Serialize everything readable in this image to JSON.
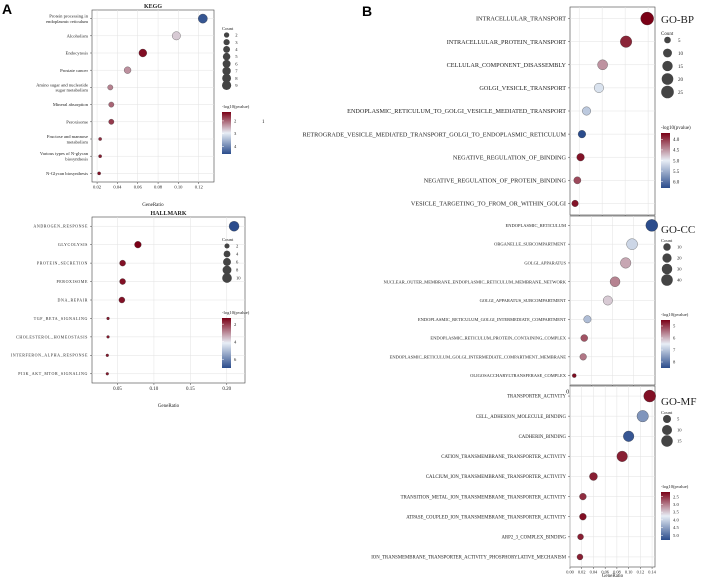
{
  "figure": {
    "panel_a_label": "A",
    "panel_b_label": "B",
    "stray_mark": "1"
  },
  "colors": {
    "low": "#2b4c8c",
    "mid": "#e8eef6",
    "high": "#7a0016",
    "grid": "#e2e2e2",
    "frame": "#444444",
    "point_stroke": "#333333"
  },
  "chart_data": [
    {
      "id": "kegg",
      "type": "scatter",
      "title": "KEGG",
      "xlabel": "GeneRatio",
      "xlim": [
        0.015,
        0.135
      ],
      "xticks": [
        0.02,
        0.04,
        0.06,
        0.08,
        0.1,
        0.12
      ],
      "xtick_labels": [
        "0.02",
        "0.04",
        "0.06",
        "0.08",
        "0.10",
        "0.12"
      ],
      "size_legend": {
        "title": "Count",
        "values": [
          2,
          3,
          4,
          5,
          6,
          7,
          8,
          9
        ],
        "labels": [
          "2",
          "3",
          "4",
          "5",
          "6",
          "7",
          "8",
          "9"
        ],
        "domain": [
          1,
          9
        ]
      },
      "color_legend": {
        "title": "-log10(pvalue)",
        "ticks": [
          2,
          3,
          4
        ],
        "tick_labels": [
          "2",
          "3",
          "4"
        ],
        "domain": [
          1.3,
          4.6
        ]
      },
      "points": [
        {
          "term": "Protein processing in endoplasmic reticulum",
          "ratio": 0.124,
          "count": 9,
          "logp": 4.5
        },
        {
          "term": "Alcoholism",
          "ratio": 0.098,
          "count": 7,
          "logp": 2.7
        },
        {
          "term": "Endocytosis",
          "ratio": 0.065,
          "count": 6,
          "logp": 1.4
        },
        {
          "term": "Prostate cancer",
          "ratio": 0.05,
          "count": 4,
          "logp": 2.3
        },
        {
          "term": "Amino sugar and nucleotide sugar metabolism",
          "ratio": 0.033,
          "count": 2,
          "logp": 2.2
        },
        {
          "term": "Mineral absorption",
          "ratio": 0.034,
          "count": 2,
          "logp": 2.0
        },
        {
          "term": "Peroxisome",
          "ratio": 0.034,
          "count": 2,
          "logp": 1.7
        },
        {
          "term": "Fructose and mannose metabolism",
          "ratio": 0.023,
          "count": 1,
          "logp": 1.6
        },
        {
          "term": "Various types of N-glycan biosynthesis",
          "ratio": 0.023,
          "count": 1,
          "logp": 1.5
        },
        {
          "term": "N-Glycan biosynthesis",
          "ratio": 0.022,
          "count": 1,
          "logp": 1.4
        }
      ]
    },
    {
      "id": "hallmark",
      "type": "scatter",
      "title": "HALLMARK",
      "xlabel": "GeneRatio",
      "xlim": [
        0.015,
        0.225
      ],
      "xticks": [
        0.05,
        0.1,
        0.15,
        0.2
      ],
      "xtick_labels": [
        "0.05",
        "0.10",
        "0.15",
        "0.20"
      ],
      "size_legend": {
        "title": "Count",
        "values": [
          2,
          4,
          6,
          8,
          10
        ],
        "labels": [
          "2",
          "4",
          "6",
          "8",
          "10"
        ],
        "domain": [
          1,
          11
        ]
      },
      "color_legend": {
        "title": "-log10(pvalue)",
        "ticks": [
          2,
          4,
          6
        ],
        "tick_labels": [
          "2",
          "4",
          "6"
        ],
        "domain": [
          1.3,
          7
        ]
      },
      "points": [
        {
          "term": "ANDROGEN_RESPONSE",
          "ratio": 0.21,
          "count": 11,
          "logp": 7.0
        },
        {
          "term": "GLYCOLYSIS",
          "ratio": 0.078,
          "count": 4,
          "logp": 1.3
        },
        {
          "term": "PROTEIN_SECRETION",
          "ratio": 0.057,
          "count": 3,
          "logp": 1.5
        },
        {
          "term": "PEROXISOME",
          "ratio": 0.057,
          "count": 3,
          "logp": 1.5
        },
        {
          "term": "DNA_REPAIR",
          "ratio": 0.056,
          "count": 3,
          "logp": 1.5
        },
        {
          "term": "TGF_BETA_SIGNALING",
          "ratio": 0.037,
          "count": 1,
          "logp": 1.6
        },
        {
          "term": "CHOLESTEROL_HOMEOSTASIS",
          "ratio": 0.037,
          "count": 1,
          "logp": 1.6
        },
        {
          "term": "INTERFERON_ALPHA_RESPONSE",
          "ratio": 0.036,
          "count": 1,
          "logp": 1.6
        },
        {
          "term": "PI3K_AKT_MTOR_SIGNALING",
          "ratio": 0.036,
          "count": 1,
          "logp": 1.6
        }
      ]
    },
    {
      "id": "go-bp",
      "type": "scatter",
      "title": "GO-BP",
      "xlabel": "",
      "xlim": [
        0.03,
        0.215
      ],
      "xticks": [
        0.05,
        0.1,
        0.15,
        0.2
      ],
      "xtick_labels": [
        "0.05",
        "0.10",
        "0.15",
        "0.20"
      ],
      "size_legend": {
        "title": "Count",
        "values": [
          5,
          10,
          15,
          20,
          25
        ],
        "labels": [
          "5",
          "10",
          "15",
          "20",
          "25"
        ],
        "domain": [
          3,
          27
        ]
      },
      "color_legend": {
        "title": "-log10(pvalue)",
        "ticks": [
          4.0,
          4.5,
          5.0,
          5.5,
          6.0
        ],
        "tick_labels": [
          "4.0",
          "4.5",
          "5.0",
          "5.5",
          "6.0"
        ],
        "domain": [
          3.7,
          6.3
        ]
      },
      "points": [
        {
          "term": "INTRACELLULAR_TRANSPORT",
          "ratio": 0.198,
          "count": 27,
          "logp": 3.7
        },
        {
          "term": "INTRACELLULAR_PROTEIN_TRANSPORT",
          "ratio": 0.152,
          "count": 20,
          "logp": 3.9
        },
        {
          "term": "CELLULAR_COMPONENT_DISASSEMBLY",
          "ratio": 0.101,
          "count": 14,
          "logp": 4.5
        },
        {
          "term": "GOLGI_VESICLE_TRANSPORT",
          "ratio": 0.093,
          "count": 12,
          "logp": 5.1
        },
        {
          "term": "ENDOPLASMIC_RETICULUM_TO_GOLGI_VESICLE_MEDIATED_TRANSPORT",
          "ratio": 0.066,
          "count": 9,
          "logp": 5.3
        },
        {
          "term": "RETROGRADE_VESICLE_MEDIATED_TRANSPORT_GOLGI_TO_ENDOPLASMIC_RETICULUM",
          "ratio": 0.056,
          "count": 7,
          "logp": 6.3
        },
        {
          "term": "NEGATIVE_REGULATION_OF_BINDING",
          "ratio": 0.053,
          "count": 7,
          "logp": 3.8
        },
        {
          "term": "NEGATIVE_REGULATION_OF_PROTEIN_BINDING",
          "ratio": 0.046,
          "count": 6,
          "logp": 4.1
        },
        {
          "term": "VESICLE_TARGETING_TO_FROM_OR_WITHIN_GOLGI",
          "ratio": 0.041,
          "count": 5,
          "logp": 3.8
        }
      ]
    },
    {
      "id": "go-cc",
      "type": "scatter",
      "title": "GO-CC",
      "xlabel": "",
      "xlim": [
        0.0,
        0.4
      ],
      "xticks": [
        0.0,
        0.1,
        0.2,
        0.3
      ],
      "xtick_labels": [
        "0.0",
        "0.10",
        "0.20",
        "0.30"
      ],
      "size_legend": {
        "title": "Count",
        "values": [
          10,
          20,
          30,
          40
        ],
        "labels": [
          "10",
          "20",
          "30",
          "40"
        ],
        "domain": [
          2,
          45
        ]
      },
      "color_legend": {
        "title": "-log10(pvalue)",
        "ticks": [
          5,
          6,
          7,
          8
        ],
        "tick_labels": [
          "5",
          "6",
          "7",
          "8"
        ],
        "domain": [
          4.5,
          8.5
        ]
      },
      "points": [
        {
          "term": "ENDOPLASMIC_RETICULUM",
          "ratio": 0.385,
          "count": 45,
          "logp": 8.5
        },
        {
          "term": "ORGANELLE_SUBCOMPARTMENT",
          "ratio": 0.292,
          "count": 35,
          "logp": 6.8
        },
        {
          "term": "GOLGI_APPARATUS",
          "ratio": 0.262,
          "count": 31,
          "logp": 5.9
        },
        {
          "term": "NUCLEAR_OUTER_MEMBRANE_ENDOPLASMIC_RETICULUM_MEMBRANE_NETWORK",
          "ratio": 0.212,
          "count": 26,
          "logp": 5.6
        },
        {
          "term": "GOLGI_APPARATUS_SUBCOMPARTMENT",
          "ratio": 0.178,
          "count": 21,
          "logp": 6.2
        },
        {
          "term": "ENDOPLASMIC_RETICULUM_GOLGI_INTERMEDIATE_COMPARTMENT",
          "ratio": 0.082,
          "count": 10,
          "logp": 7.1
        },
        {
          "term": "ENDOPLASMIC_RETICULUM_PROTEIN_CONTAINING_COMPLEX",
          "ratio": 0.067,
          "count": 8,
          "logp": 5.2
        },
        {
          "term": "ENDOPLASMIC_RETICULUM_GOLGI_INTERMEDIATE_COMPARTMENT_MEMBRANE",
          "ratio": 0.062,
          "count": 7,
          "logp": 5.5
        },
        {
          "term": "OLIGOSACCHARYLTRANSFERASE_COMPLEX",
          "ratio": 0.02,
          "count": 2,
          "logp": 4.6
        }
      ]
    },
    {
      "id": "go-mf",
      "type": "scatter",
      "title": "GO-MF",
      "xlabel": "GeneRatio",
      "xlim": [
        0.0,
        0.145
      ],
      "xticks": [
        0.0,
        0.02,
        0.04,
        0.06,
        0.08,
        0.1,
        0.12,
        0.14
      ],
      "xtick_labels": [
        "0.00",
        "0.02",
        "0.04",
        "0.06",
        "0.08",
        "0.10",
        "0.12",
        "0.14"
      ],
      "size_legend": {
        "title": "Count",
        "values": [
          5,
          10,
          15
        ],
        "labels": [
          "5",
          "10",
          "15"
        ],
        "domain": [
          1,
          17
        ]
      },
      "color_legend": {
        "title": "-log10(pvalue)",
        "ticks": [
          2.5,
          3.0,
          3.5,
          4.0,
          4.5,
          5.0
        ],
        "tick_labels": [
          "2.5",
          "3.0",
          "3.5",
          "4.0",
          "4.5",
          "5.0"
        ],
        "domain": [
          2.2,
          5.3
        ]
      },
      "points": [
        {
          "term": "TRANSPORTER_ACTIVITY",
          "ratio": 0.136,
          "count": 17,
          "logp": 2.3
        },
        {
          "term": "CELL_ADHESION_MOLECULE_BINDING",
          "ratio": 0.124,
          "count": 15,
          "logp": 4.6
        },
        {
          "term": "CADHERIN_BINDING",
          "ratio": 0.1,
          "count": 12,
          "logp": 5.2
        },
        {
          "term": "CATION_TRANSMEMBRANE_TRANSPORTER_ACTIVITY",
          "ratio": 0.089,
          "count": 12,
          "logp": 2.4
        },
        {
          "term": "CALCIUM_ION_TRANSMEMBRANE_TRANSPORTER_ACTIVITY",
          "ratio": 0.04,
          "count": 5,
          "logp": 2.4
        },
        {
          "term": "TRANSITION_METAL_ION_TRANSMEMBRANE_TRANSPORTER_ACTIVITY",
          "ratio": 0.022,
          "count": 3,
          "logp": 2.5
        },
        {
          "term": "ATPASE_COUPLED_ION_TRANSMEMBRANE_TRANSPORTER_ACTIVITY",
          "ratio": 0.022,
          "count": 3,
          "logp": 2.3
        },
        {
          "term": "ARP2_3_COMPLEX_BINDING",
          "ratio": 0.018,
          "count": 2,
          "logp": 2.4
        },
        {
          "term": "ION_TRANSMEMBRANE_TRANSPORTER_ACTIVITY_PHOSPHORYLATIVE_MECHANISM",
          "ratio": 0.017,
          "count": 2,
          "logp": 2.4
        }
      ]
    }
  ]
}
